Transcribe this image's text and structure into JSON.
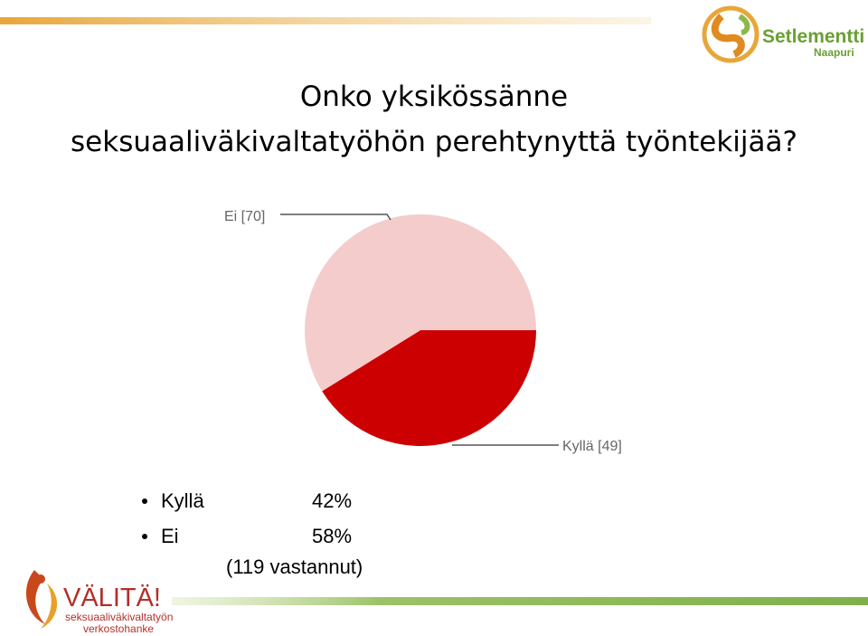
{
  "chart_data": {
    "type": "pie",
    "title": "Onko yksikössänne seksuaaliväkivaltatyöhön perehtynyttä työntekijää?",
    "categories": [
      "Kyllä",
      "Ei"
    ],
    "values": [
      49,
      70
    ],
    "value_labels": [
      "Kyllä [49]",
      "Ei [70]"
    ],
    "colors": [
      "#cc0000",
      "#f4cccc"
    ]
  },
  "summary": {
    "items": [
      {
        "label": "Kyllä",
        "percent": "42%"
      },
      {
        "label": "Ei",
        "percent": "58%"
      }
    ],
    "note": "(119 vastannut)"
  },
  "logos": {
    "top": {
      "name": "Setlementti",
      "sub": "Naapuri"
    },
    "bottom": {
      "name": "VÄLITÄ!",
      "line1": "seksuaaliväkivaltatyön",
      "line2": "verkostohanke"
    }
  }
}
